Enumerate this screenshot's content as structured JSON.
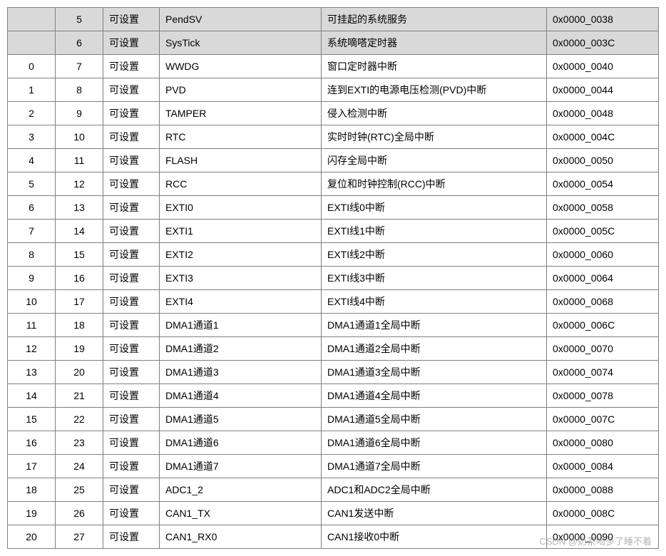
{
  "columns_widths": [
    50,
    50,
    62,
    210,
    360,
    140
  ],
  "shaded_rows": [
    0,
    1
  ],
  "rows": [
    {
      "c0": "",
      "c1": "5",
      "c2": "可设置",
      "c3": "PendSV",
      "c4": "可挂起的系统服务",
      "c5": "0x0000_0038"
    },
    {
      "c0": "",
      "c1": "6",
      "c2": "可设置",
      "c3": "SysTick",
      "c4": "系统嘀嗒定时器",
      "c5": "0x0000_003C"
    },
    {
      "c0": "0",
      "c1": "7",
      "c2": "可设置",
      "c3": "WWDG",
      "c4": "窗口定时器中断",
      "c5": "0x0000_0040"
    },
    {
      "c0": "1",
      "c1": "8",
      "c2": "可设置",
      "c3": "PVD",
      "c4": "连到EXTI的电源电压检测(PVD)中断",
      "c5": "0x0000_0044"
    },
    {
      "c0": "2",
      "c1": "9",
      "c2": "可设置",
      "c3": "TAMPER",
      "c4": "侵入检测中断",
      "c5": "0x0000_0048"
    },
    {
      "c0": "3",
      "c1": "10",
      "c2": "可设置",
      "c3": "RTC",
      "c4": "实时时钟(RTC)全局中断",
      "c5": "0x0000_004C"
    },
    {
      "c0": "4",
      "c1": "11",
      "c2": "可设置",
      "c3": "FLASH",
      "c4": "闪存全局中断",
      "c5": "0x0000_0050"
    },
    {
      "c0": "5",
      "c1": "12",
      "c2": "可设置",
      "c3": "RCC",
      "c4": "复位和时钟控制(RCC)中断",
      "c5": "0x0000_0054"
    },
    {
      "c0": "6",
      "c1": "13",
      "c2": "可设置",
      "c3": "EXTI0",
      "c4": "EXTI线0中断",
      "c5": "0x0000_0058"
    },
    {
      "c0": "7",
      "c1": "14",
      "c2": "可设置",
      "c3": "EXTI1",
      "c4": "EXTI线1中断",
      "c5": "0x0000_005C"
    },
    {
      "c0": "8",
      "c1": "15",
      "c2": "可设置",
      "c3": "EXTI2",
      "c4": "EXTI线2中断",
      "c5": "0x0000_0060"
    },
    {
      "c0": "9",
      "c1": "16",
      "c2": "可设置",
      "c3": "EXTI3",
      "c4": "EXTI线3中断",
      "c5": "0x0000_0064"
    },
    {
      "c0": "10",
      "c1": "17",
      "c2": "可设置",
      "c3": "EXTI4",
      "c4": "EXTI线4中断",
      "c5": "0x0000_0068"
    },
    {
      "c0": "11",
      "c1": "18",
      "c2": "可设置",
      "c3": "DMA1通道1",
      "c4": "DMA1通道1全局中断",
      "c5": "0x0000_006C"
    },
    {
      "c0": "12",
      "c1": "19",
      "c2": "可设置",
      "c3": "DMA1通道2",
      "c4": "DMA1通道2全局中断",
      "c5": "0x0000_0070"
    },
    {
      "c0": "13",
      "c1": "20",
      "c2": "可设置",
      "c3": "DMA1通道3",
      "c4": "DMA1通道3全局中断",
      "c5": "0x0000_0074"
    },
    {
      "c0": "14",
      "c1": "21",
      "c2": "可设置",
      "c3": "DMA1通道4",
      "c4": "DMA1通道4全局中断",
      "c5": "0x0000_0078"
    },
    {
      "c0": "15",
      "c1": "22",
      "c2": "可设置",
      "c3": "DMA1通道5",
      "c4": "DMA1通道5全局中断",
      "c5": "0x0000_007C"
    },
    {
      "c0": "16",
      "c1": "23",
      "c2": "可设置",
      "c3": "DMA1通道6",
      "c4": "DMA1通道6全局中断",
      "c5": "0x0000_0080"
    },
    {
      "c0": "17",
      "c1": "24",
      "c2": "可设置",
      "c3": "DMA1通道7",
      "c4": "DMA1通道7全局中断",
      "c5": "0x0000_0084"
    },
    {
      "c0": "18",
      "c1": "25",
      "c2": "可设置",
      "c3": "ADC1_2",
      "c4": "ADC1和ADC2全局中断",
      "c5": "0x0000_0088"
    },
    {
      "c0": "19",
      "c1": "26",
      "c2": "可设置",
      "c3": "CAN1_TX",
      "c4": "CAN1发送中断",
      "c5": "0x0000_008C"
    },
    {
      "c0": "20",
      "c1": "27",
      "c2": "可设置",
      "c3": "CAN1_RX0",
      "c4": "CAN1接收0中断",
      "c5": "0x0000_0090"
    }
  ],
  "watermark": "CSDN @奶茶喝多了睡不着"
}
